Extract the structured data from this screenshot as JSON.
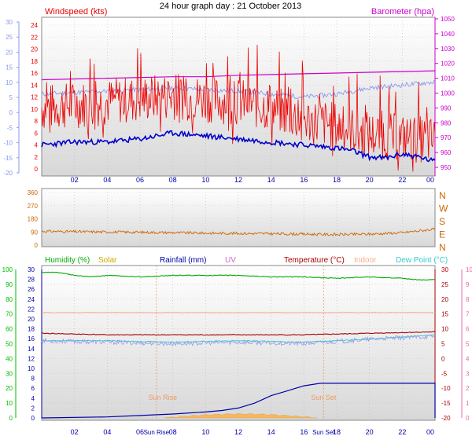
{
  "title": "24 hour graph day : 21 October 2013",
  "colors": {
    "windspeed": "#ee0000",
    "windavg": "#0000cc",
    "barometer": "#cc00cc",
    "temp_c": "#8899ee",
    "direction": "#cc6600",
    "humidity": "#00aa00",
    "solar": "#ccaa00",
    "rainfall": "#0000aa",
    "uv": "#cc66cc",
    "temperature": "#aa0000",
    "indoor": "#ffaa88",
    "dewpoint": "#33cccc",
    "rain_axis": "#00bb00",
    "pink_axis": "#ee66aa",
    "sun": "#ee9966"
  },
  "x_ticks": [
    "02",
    "04",
    "06",
    "08",
    "10",
    "12",
    "14",
    "16",
    "18",
    "20",
    "22",
    "00"
  ],
  "sun": {
    "rise_label": "Sun Rise",
    "set_label": "Sun Set",
    "rise_time_label": "Sun Rise",
    "set_time_label": "Sun Set"
  },
  "chart_data": [
    {
      "type": "line",
      "panel": "wind",
      "title": "24 hour graph day : 21 October 2013",
      "left_label": "Windspeed (kts)",
      "right_label": "Barometer (hpa)",
      "y_left_ticks": [
        "0",
        "2",
        "4",
        "6",
        "8",
        "10",
        "12",
        "14",
        "16",
        "18",
        "20",
        "22",
        "24"
      ],
      "y_far_left_ticks": [
        "-20",
        "-15",
        "-10",
        "-5",
        "0",
        "5",
        "10",
        "15",
        "20",
        "25",
        "30"
      ],
      "y_right_ticks": [
        "950",
        "960",
        "970",
        "980",
        "990",
        "1000",
        "1010",
        "1020",
        "1030",
        "1040",
        "1050"
      ],
      "ylim": [
        0,
        25
      ],
      "series": [
        {
          "name": "Windspeed (kts)",
          "x": [
            0,
            2,
            4,
            6,
            8,
            10,
            12,
            14,
            16,
            18,
            20,
            22,
            24
          ],
          "values": [
            9,
            9.5,
            10,
            10.5,
            11,
            10.5,
            10,
            9,
            7,
            6,
            4.5,
            4,
            3.5
          ]
        },
        {
          "name": "Barometer (hpa)",
          "x": [
            0,
            2,
            4,
            6,
            8,
            10,
            12,
            14,
            16,
            18,
            20,
            22,
            24
          ],
          "values": [
            1009,
            1009.5,
            1010,
            1010.5,
            1011,
            1011,
            1012,
            1012.5,
            1013,
            1013.5,
            1014,
            1014.5,
            1015
          ]
        }
      ]
    },
    {
      "type": "line",
      "panel": "direction",
      "right_ticks": [
        "N",
        "W",
        "S",
        "E",
        "N"
      ],
      "y_left_ticks": [
        "0",
        "90",
        "180",
        "270",
        "360"
      ],
      "ylim": [
        0,
        360
      ],
      "series": [
        {
          "name": "Wind direction",
          "x": [
            0,
            2,
            4,
            6,
            8,
            10,
            12,
            14,
            16,
            18,
            20,
            22,
            24
          ],
          "values": [
            95,
            92,
            90,
            88,
            85,
            82,
            80,
            78,
            75,
            72,
            75,
            85,
            110
          ]
        }
      ]
    },
    {
      "type": "line",
      "panel": "weather",
      "labels": {
        "humidity": "Humidity (%)",
        "solar": "Solar",
        "rainfall": "Rainfall (mm)",
        "uv": "UV",
        "temperature": "Temperature (°C)",
        "indoor": "Indoor",
        "dewpoint": "Dew Point (°C)"
      },
      "y_humidity_ticks": [
        "0",
        "10",
        "20",
        "30",
        "40",
        "50",
        "60",
        "70",
        "80",
        "90",
        "100"
      ],
      "y_rain_ticks": [
        "0",
        "2",
        "4",
        "6",
        "8",
        "10",
        "12",
        "14",
        "16",
        "18",
        "20",
        "22",
        "24",
        "26",
        "28",
        "30"
      ],
      "y_temp_ticks": [
        "-20",
        "-15",
        "-10",
        "-5",
        "0",
        "5",
        "10",
        "15",
        "20",
        "25",
        "30"
      ],
      "y_uv_ticks": [
        "0",
        "1",
        "2",
        "3",
        "4",
        "5",
        "6",
        "7",
        "8",
        "9",
        "10"
      ],
      "ylim_humidity": [
        0,
        100
      ],
      "series": [
        {
          "name": "Humidity (%)",
          "x": [
            0,
            1,
            2,
            3,
            4,
            6,
            8,
            10,
            12,
            14,
            16,
            18,
            20,
            22,
            23,
            24
          ],
          "values": [
            98,
            98,
            96,
            95,
            96,
            95,
            96,
            96,
            96,
            95,
            95,
            94,
            95,
            94,
            93,
            93
          ]
        },
        {
          "name": "Indoor",
          "x": [
            0,
            24
          ],
          "values": [
            71,
            71
          ]
        },
        {
          "name": "Temperature (°C)",
          "x": [
            0,
            4,
            8,
            12,
            16,
            20,
            24
          ],
          "values": [
            57,
            56,
            56,
            56,
            56,
            57,
            58
          ]
        },
        {
          "name": "Dew Point (°C)",
          "x": [
            0,
            4,
            8,
            12,
            16,
            20,
            24
          ],
          "values": [
            52,
            52,
            51,
            52,
            51,
            53,
            56
          ]
        },
        {
          "name": "Rainfall (mm)",
          "x": [
            0,
            4,
            6,
            8,
            10,
            11,
            12,
            13,
            14,
            15,
            16,
            17,
            18,
            20,
            24
          ],
          "values": [
            0,
            0.2,
            0.5,
            0.8,
            1.2,
            1.5,
            2,
            3,
            4.5,
            5.5,
            6.5,
            7,
            7,
            7,
            7
          ]
        }
      ]
    }
  ]
}
